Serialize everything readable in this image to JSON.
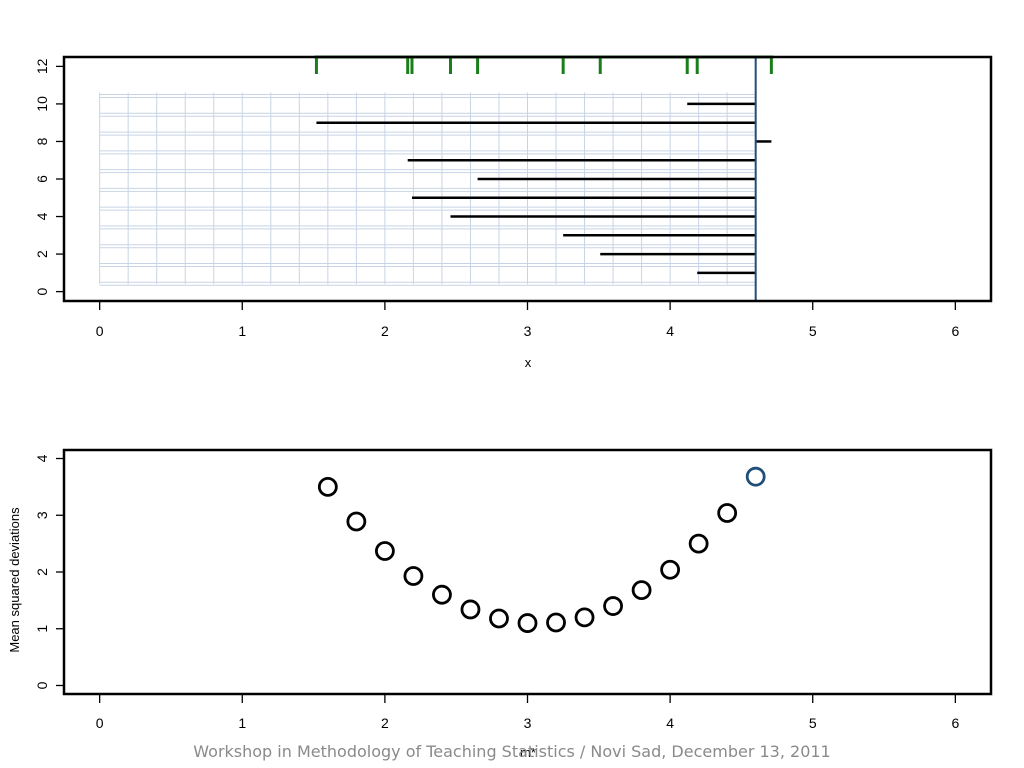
{
  "chart_data": [
    {
      "type": "line",
      "xlabel": "x",
      "ylabel": "",
      "xlim": [
        -0.25,
        6.25
      ],
      "ylim": [
        -0.5,
        12.5
      ],
      "x_ticks": [
        "0",
        "1",
        "2",
        "3",
        "4",
        "5",
        "6"
      ],
      "y_ticks": [
        "0",
        "2",
        "4",
        "6",
        "8",
        "10",
        "12"
      ],
      "observations": [
        4.19,
        3.51,
        3.25,
        2.46,
        2.19,
        2.65,
        2.16,
        4.71,
        1.52,
        4.12
      ],
      "reference_line_x": 4.6,
      "grid_step": 0.2,
      "colors": {
        "rug": "#1a7f1a",
        "reference": "#1f4e79",
        "deviation": "#000000",
        "grid": "#c8d4e6"
      }
    },
    {
      "type": "scatter",
      "xlabel": "m*",
      "ylabel": "Mean squared deviations",
      "xlim": [
        -0.25,
        6.25
      ],
      "ylim": [
        -0.15,
        4.15
      ],
      "x_ticks": [
        "0",
        "1",
        "2",
        "3",
        "4",
        "5",
        "6"
      ],
      "y_ticks": [
        "0",
        "1",
        "2",
        "3",
        "4"
      ],
      "points": [
        {
          "x": 1.6,
          "y": 3.5
        },
        {
          "x": 1.8,
          "y": 2.89
        },
        {
          "x": 2.0,
          "y": 2.37
        },
        {
          "x": 2.2,
          "y": 1.93
        },
        {
          "x": 2.4,
          "y": 1.6
        },
        {
          "x": 2.6,
          "y": 1.34
        },
        {
          "x": 2.8,
          "y": 1.18
        },
        {
          "x": 3.0,
          "y": 1.1
        },
        {
          "x": 3.2,
          "y": 1.11
        },
        {
          "x": 3.4,
          "y": 1.2
        },
        {
          "x": 3.6,
          "y": 1.4
        },
        {
          "x": 3.8,
          "y": 1.68
        },
        {
          "x": 4.0,
          "y": 2.04
        },
        {
          "x": 4.2,
          "y": 2.5
        },
        {
          "x": 4.4,
          "y": 3.04
        },
        {
          "x": 4.6,
          "y": 3.68,
          "highlight": true
        }
      ],
      "colors": {
        "point": "#000000",
        "highlight": "#1f4e79"
      }
    }
  ],
  "footer": {
    "text": "Workshop in Methodology of Teaching Statistics / Novi Sad, December 13, 2011"
  }
}
